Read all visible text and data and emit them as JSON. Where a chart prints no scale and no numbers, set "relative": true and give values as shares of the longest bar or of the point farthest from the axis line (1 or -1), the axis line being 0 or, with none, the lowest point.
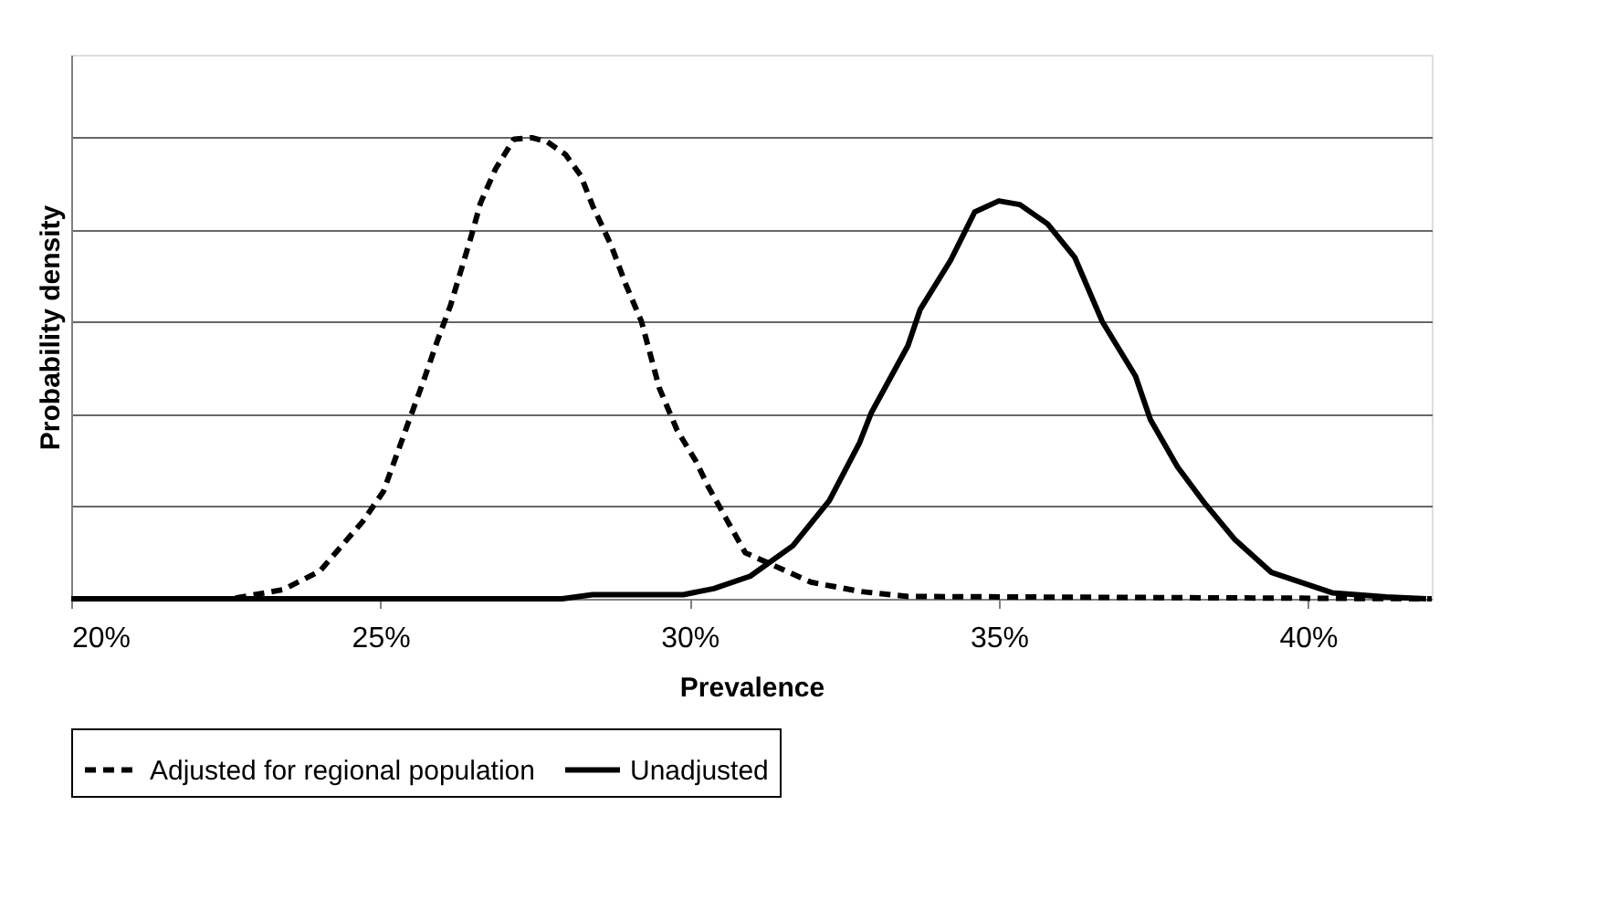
{
  "chart_data": {
    "type": "line",
    "relative": true,
    "xlabel": "Prevalence",
    "ylabel": "Probability density",
    "xlim": [
      20,
      42
    ],
    "xticks": [
      {
        "value": 20,
        "label": "20%"
      },
      {
        "value": 25,
        "label": "25%"
      },
      {
        "value": 30,
        "label": "30%"
      },
      {
        "value": 35,
        "label": "35%"
      },
      {
        "value": 40,
        "label": "40%"
      }
    ],
    "grid": "y",
    "legend": "bottom",
    "marker": "none",
    "series": [
      {
        "name": "Adjusted for regional population",
        "color": "#000000",
        "line_style": "dashed",
        "x": [
          20,
          22.6,
          23.43,
          24.02,
          24.71,
          25.05,
          25.44,
          25.69,
          25.93,
          26.13,
          26.47,
          26.62,
          26.86,
          27.16,
          27.45,
          27.7,
          27.99,
          28.24,
          28.43,
          28.73,
          28.97,
          29.22,
          29.51,
          29.8,
          30.1,
          30.29,
          30.59,
          30.9,
          31.96,
          32.75,
          33.53,
          42
        ],
        "values": [
          0,
          0,
          0.02,
          0.06,
          0.167,
          0.233,
          0.378,
          0.47,
          0.563,
          0.635,
          0.787,
          0.859,
          0.932,
          0.997,
          1.0,
          0.991,
          0.964,
          0.918,
          0.853,
          0.767,
          0.681,
          0.602,
          0.457,
          0.365,
          0.299,
          0.246,
          0.174,
          0.1,
          0.036,
          0.016,
          0.005,
          0
        ]
      },
      {
        "name": "Unadjusted",
        "color": "#000000",
        "line_style": "solid",
        "x": [
          20,
          27.94,
          28.43,
          29.9,
          30.39,
          30.98,
          31.67,
          32.26,
          32.75,
          32.94,
          33.53,
          33.73,
          34.22,
          34.61,
          35.0,
          35.34,
          35.79,
          36.23,
          36.67,
          37.21,
          37.45,
          37.89,
          38.33,
          38.82,
          39.41,
          40.39,
          41.27,
          41.91
        ],
        "values": [
          0,
          0,
          0.009,
          0.009,
          0.022,
          0.049,
          0.115,
          0.213,
          0.339,
          0.404,
          0.549,
          0.628,
          0.734,
          0.839,
          0.863,
          0.855,
          0.813,
          0.74,
          0.602,
          0.483,
          0.389,
          0.286,
          0.207,
          0.128,
          0.057,
          0.013,
          0.004,
          0
        ]
      }
    ]
  }
}
